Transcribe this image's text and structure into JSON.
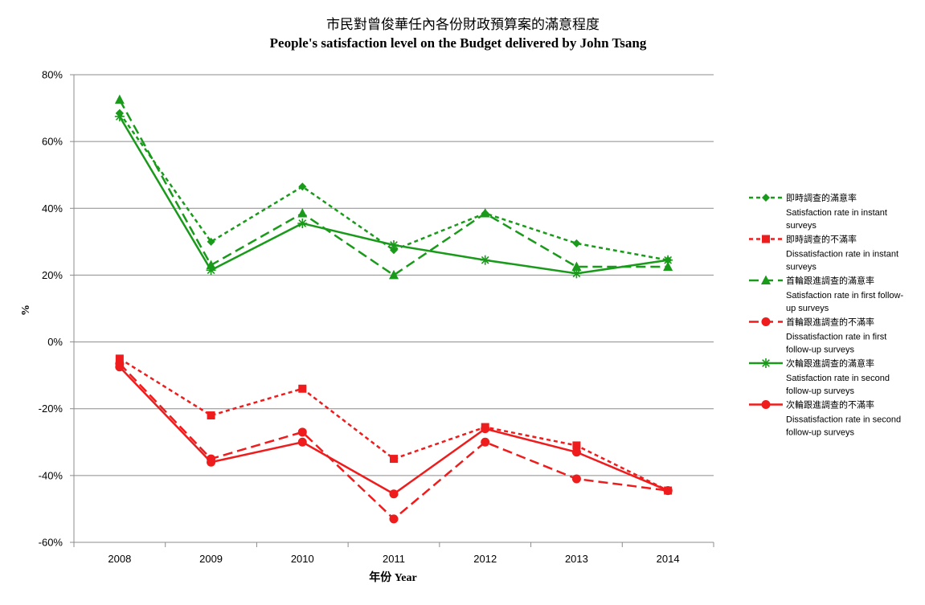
{
  "chart_data": {
    "type": "line",
    "title_zh": "市民對曾俊華任內各份財政預算案的滿意程度",
    "title_en": "People's satisfaction level on the Budget delivered by John Tsang",
    "xlabel": "年份 Year",
    "ylabel": "%",
    "ylim": [
      -60,
      80
    ],
    "yticks": [
      80,
      60,
      40,
      20,
      0,
      -20,
      -40,
      -60
    ],
    "ytick_labels": [
      "80%",
      "60%",
      "40%",
      "20%",
      "0%",
      "-20%",
      "-40%",
      "-60%"
    ],
    "categories": [
      "2008",
      "2009",
      "2010",
      "2011",
      "2012",
      "2013",
      "2014"
    ],
    "grid": "horizontal",
    "legend_position": "right",
    "series": [
      {
        "name_zh": "即時調查的滿意率",
        "name_en_lines": [
          "Satisfaction rate in instant",
          "surveys"
        ],
        "color": "#1a9a1a",
        "dash": "short",
        "marker": "diamond",
        "values": [
          68.5,
          30,
          46.5,
          27.5,
          38.5,
          29.5,
          24.5
        ]
      },
      {
        "name_zh": "即時調查的不滿率",
        "name_en_lines": [
          "Dissatisfaction rate in instant",
          "surveys"
        ],
        "color": "#ee1c1c",
        "dash": "short",
        "marker": "square",
        "values": [
          -5,
          -22,
          -14,
          -35,
          -25.5,
          -31,
          -44.5
        ]
      },
      {
        "name_zh": "首輪跟進調查的滿意率",
        "name_en_lines": [
          "Satisfaction rate in first follow-",
          "up surveys"
        ],
        "color": "#1a9a1a",
        "dash": "long",
        "marker": "triangle",
        "values": [
          72.5,
          23,
          38.5,
          20,
          38.5,
          22.5,
          22.5
        ]
      },
      {
        "name_zh": "首輪跟進調查的不滿率",
        "name_en_lines": [
          "Dissatisfaction rate in first",
          "follow-up surveys"
        ],
        "color": "#ee1c1c",
        "dash": "long",
        "marker": "circle",
        "values": [
          -6.5,
          -35,
          -27,
          -53,
          -30,
          -41,
          -44.5
        ]
      },
      {
        "name_zh": "次輪跟進調查的滿意率",
        "name_en_lines": [
          "Satisfaction rate in second",
          "follow-up surveys"
        ],
        "color": "#1a9a1a",
        "dash": "solid",
        "marker": "star",
        "values": [
          67.5,
          21.5,
          35.5,
          29,
          24.5,
          20.5,
          24.5
        ]
      },
      {
        "name_zh": "次輪跟進調查的不滿率",
        "name_en_lines": [
          "Dissatisfaction rate in second",
          "follow-up surveys"
        ],
        "color": "#ee1c1c",
        "dash": "solid",
        "marker": "circle",
        "values": [
          -7.5,
          -36,
          -30,
          -45.5,
          -26,
          -33,
          -44.5
        ]
      }
    ]
  }
}
